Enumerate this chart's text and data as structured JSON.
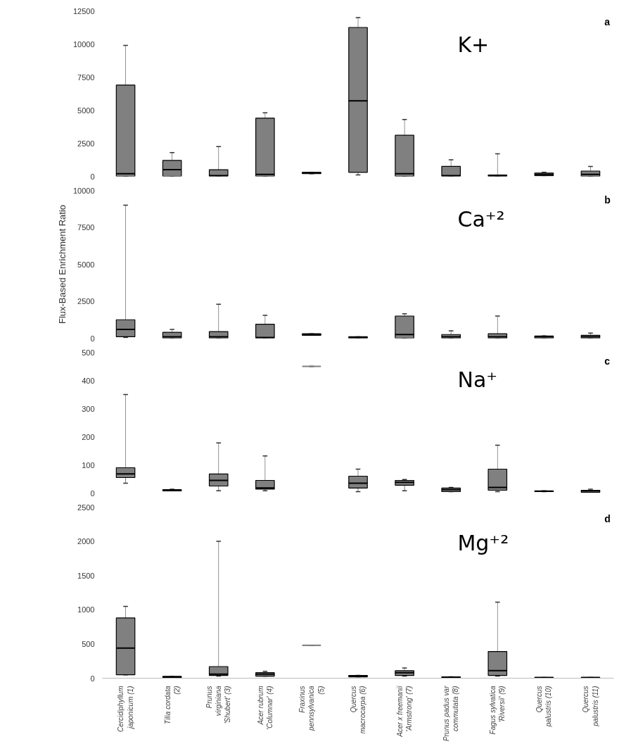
{
  "chart_data": [
    {
      "type": "box",
      "title": "K+",
      "annotations": [
        "a"
      ],
      "tick_labels": "y",
      "grid": false,
      "categories": [
        "Cercidiphyllum japonicum (1)",
        "Tilia cordata (2)",
        "Prunus virginiana 'Shubert' (3)",
        "Acer rubrum 'Columnar' (4)",
        "Fraxinus pennsylvanica (5)",
        "Quercus macrocarpa (6)",
        "Acer x freemanii 'Armstrong' (7)",
        "Prunus padus var commutata (8)",
        "Fagus sylvatica 'Riversii' (9)",
        "Quercus palustris (10)",
        "Quercus palustris (11)"
      ],
      "ylim": [
        0,
        12500
      ],
      "yticks": [
        0,
        2500,
        5000,
        7500,
        10000,
        12500
      ],
      "color": "#808080",
      "boxes": [
        {
          "low": 0,
          "q1": 0,
          "median": 200,
          "q3": 6900,
          "high": 9900
        },
        {
          "low": 0,
          "q1": 0,
          "median": 500,
          "q3": 1200,
          "high": 1800
        },
        {
          "low": 0,
          "q1": 0,
          "median": 50,
          "q3": 500,
          "high": 2250
        },
        {
          "low": 0,
          "q1": 0,
          "median": 150,
          "q3": 4400,
          "high": 4800
        },
        {
          "low": 200,
          "q1": 200,
          "median": 250,
          "q3": 300,
          "high": 300
        },
        {
          "low": 100,
          "q1": 300,
          "median": 5700,
          "q3": 11250,
          "high": 12000
        },
        {
          "low": 0,
          "q1": 0,
          "median": 200,
          "q3": 3100,
          "high": 4300
        },
        {
          "low": 0,
          "q1": 0,
          "median": 50,
          "q3": 750,
          "high": 1250
        },
        {
          "low": 0,
          "q1": 0,
          "median": 50,
          "q3": 100,
          "high": 1700
        },
        {
          "low": 50,
          "q1": 50,
          "median": 150,
          "q3": 250,
          "high": 300
        },
        {
          "low": 0,
          "q1": 0,
          "median": 150,
          "q3": 400,
          "high": 750
        }
      ]
    },
    {
      "type": "box",
      "title": "Ca⁺²",
      "annotations": [
        "b"
      ],
      "tick_labels": "y",
      "grid": false,
      "ylabel": "Flux-Based Enrichment Ratio",
      "categories": [
        "Cercidiphyllum japonicum (1)",
        "Tilia cordata (2)",
        "Prunus virginiana 'Shubert' (3)",
        "Acer rubrum 'Columnar' (4)",
        "Fraxinus pennsylvanica (5)",
        "Quercus macrocarpa (6)",
        "Acer x freemanii 'Armstrong' (7)",
        "Prunus padus var commutata (8)",
        "Fagus sylvatica 'Riversii' (9)",
        "Quercus palustris (10)",
        "Quercus palustris (11)"
      ],
      "ylim": [
        0,
        10000
      ],
      "yticks": [
        0,
        2500,
        5000,
        7500,
        10000
      ],
      "color": "#808080",
      "boxes": [
        {
          "low": 50,
          "q1": 100,
          "median": 600,
          "q3": 1250,
          "high": 9000
        },
        {
          "low": 0,
          "q1": 0,
          "median": 100,
          "q3": 400,
          "high": 600
        },
        {
          "low": 0,
          "q1": 0,
          "median": 100,
          "q3": 450,
          "high": 2300
        },
        {
          "low": 0,
          "q1": 0,
          "median": 50,
          "q3": 950,
          "high": 1550
        },
        {
          "low": 200,
          "q1": 200,
          "median": 250,
          "q3": 300,
          "high": 300
        },
        {
          "low": 0,
          "q1": 0,
          "median": 50,
          "q3": 100,
          "high": 100
        },
        {
          "low": 0,
          "q1": 0,
          "median": 250,
          "q3": 1500,
          "high": 1650
        },
        {
          "low": 0,
          "q1": 0,
          "median": 100,
          "q3": 250,
          "high": 500
        },
        {
          "low": 0,
          "q1": 0,
          "median": 100,
          "q3": 300,
          "high": 1500
        },
        {
          "low": 0,
          "q1": 0,
          "median": 100,
          "q3": 150,
          "high": 150
        },
        {
          "low": 0,
          "q1": 0,
          "median": 100,
          "q3": 200,
          "high": 350
        }
      ]
    },
    {
      "type": "box",
      "title": "Na⁺",
      "annotations": [
        "c"
      ],
      "tick_labels": "y",
      "grid": false,
      "categories": [
        "Cercidiphyllum japonicum (1)",
        "Tilia cordata (2)",
        "Prunus virginiana 'Shubert' (3)",
        "Acer rubrum 'Columnar' (4)",
        "Fraxinus pennsylvanica (5)",
        "Quercus macrocarpa (6)",
        "Acer x freemanii 'Armstrong' (7)",
        "Prunus padus var commutata (8)",
        "Fagus sylvatica 'Riversii' (9)",
        "Quercus palustris (10)",
        "Quercus palustris (11)"
      ],
      "ylim": [
        0,
        500
      ],
      "yticks": [
        0,
        100,
        200,
        300,
        400,
        500
      ],
      "color": "#808080",
      "boxes": [
        {
          "low": 35,
          "q1": 55,
          "median": 68,
          "q3": 90,
          "high": 350
        },
        {
          "low": 8,
          "q1": 8,
          "median": 10,
          "q3": 12,
          "high": 14
        },
        {
          "low": 8,
          "q1": 25,
          "median": 45,
          "q3": 68,
          "high": 178
        },
        {
          "low": 8,
          "q1": 14,
          "median": 18,
          "q3": 45,
          "high": 132
        },
        {
          "low": 450,
          "q1": 450,
          "median": 450,
          "q3": 450,
          "high": 450
        },
        {
          "low": 5,
          "q1": 18,
          "median": 35,
          "q3": 60,
          "high": 85
        },
        {
          "low": 8,
          "q1": 28,
          "median": 38,
          "q3": 45,
          "high": 48
        },
        {
          "low": 5,
          "q1": 5,
          "median": 12,
          "q3": 18,
          "high": 20
        },
        {
          "low": 5,
          "q1": 10,
          "median": 20,
          "q3": 85,
          "high": 170
        },
        {
          "low": 5,
          "q1": 5,
          "median": 6,
          "q3": 8,
          "high": 8
        },
        {
          "low": 3,
          "q1": 3,
          "median": 8,
          "q3": 10,
          "high": 14
        }
      ]
    },
    {
      "type": "box",
      "title": "Mg⁺²",
      "annotations": [
        "d"
      ],
      "grid": false,
      "categories": [
        "Cercidiphyllum japonicum (1)",
        "Tilia cordata (2)",
        "Prunus virginiana 'Shubert' (3)",
        "Acer rubrum 'Columnar' (4)",
        "Fraxinus pennsylvanica (5)",
        "Quercus macrocarpa (6)",
        "Acer x freemanii 'Armstrong' (7)",
        "Prunus padus var commutata (8)",
        "Fagus sylvatica 'Riversii' (9)",
        "Quercus palustris (10)",
        "Quercus palustris (11)"
      ],
      "ylim": [
        0,
        2500
      ],
      "yticks": [
        0,
        500,
        1000,
        1500,
        2000,
        2500
      ],
      "color": "#808080",
      "boxes": [
        {
          "low": 50,
          "q1": 50,
          "median": 440,
          "q3": 880,
          "high": 1050
        },
        {
          "low": 10,
          "q1": 10,
          "median": 20,
          "q3": 25,
          "high": 25
        },
        {
          "low": 30,
          "q1": 40,
          "median": 60,
          "q3": 170,
          "high": 2000
        },
        {
          "low": 30,
          "q1": 30,
          "median": 60,
          "q3": 80,
          "high": 100
        },
        {
          "low": 480,
          "q1": 480,
          "median": 480,
          "q3": 480,
          "high": 480
        },
        {
          "low": 20,
          "q1": 20,
          "median": 30,
          "q3": 40,
          "high": 40
        },
        {
          "low": 30,
          "q1": 40,
          "median": 80,
          "q3": 110,
          "high": 150
        },
        {
          "low": 10,
          "q1": 10,
          "median": 15,
          "q3": 20,
          "high": 20
        },
        {
          "low": 30,
          "q1": 40,
          "median": 110,
          "q3": 390,
          "high": 1110
        },
        {
          "low": 5,
          "q1": 5,
          "median": 10,
          "q3": 10,
          "high": 10
        },
        {
          "low": 5,
          "q1": 5,
          "median": 10,
          "q3": 10,
          "high": 10
        }
      ]
    }
  ]
}
